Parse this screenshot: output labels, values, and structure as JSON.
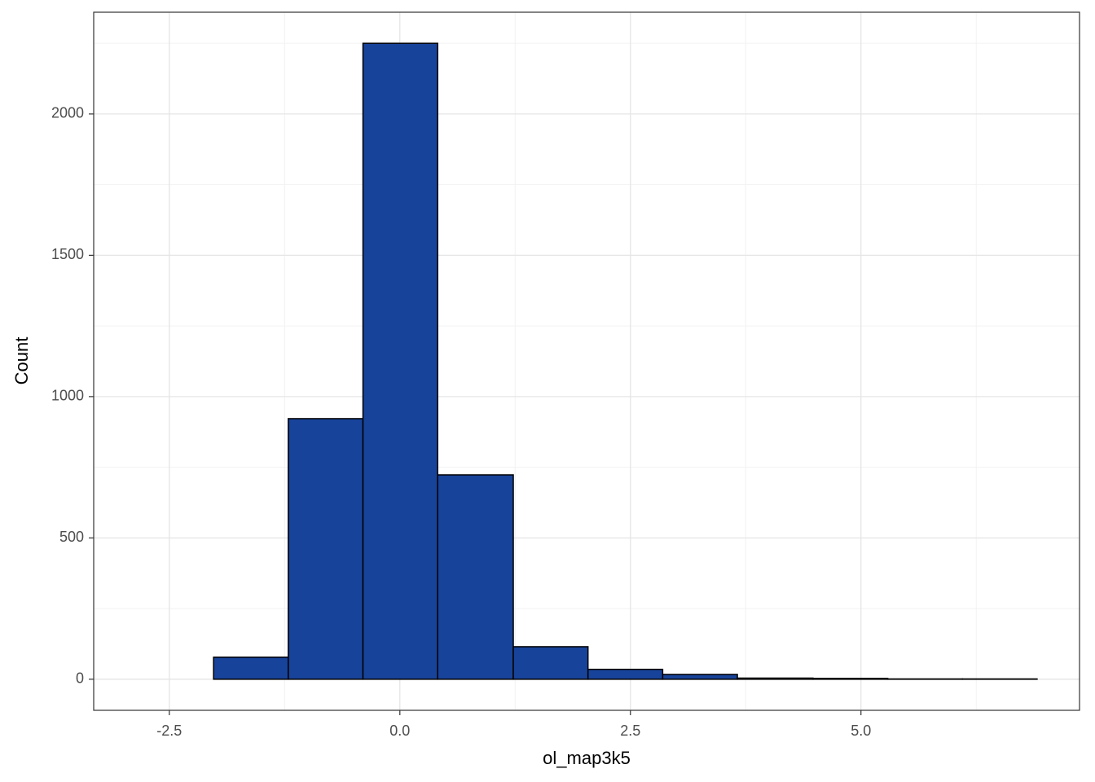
{
  "chart_data": {
    "type": "histogram",
    "x_label": "ol_map3k5",
    "y_label": "Count",
    "bins": [
      -2.83,
      -2.02,
      -1.21,
      -0.4,
      0.41,
      1.23,
      2.04,
      2.85,
      3.66,
      4.48,
      5.29,
      6.1,
      6.91
    ],
    "counts": [
      0,
      78,
      922,
      2250,
      723,
      115,
      35,
      17,
      4,
      3,
      1,
      1
    ],
    "color": "#18439a",
    "xlim": [
      -3.32,
      7.37
    ],
    "ylim": [
      -110,
      2360
    ],
    "xticks": [
      -2.5,
      {
        "value": 0,
        "label": "0.0"
      },
      2.5,
      {
        "value": 5,
        "label": "5.0"
      }
    ],
    "yticks": [
      0,
      500,
      1000,
      1500,
      2000
    ],
    "grid": true
  }
}
